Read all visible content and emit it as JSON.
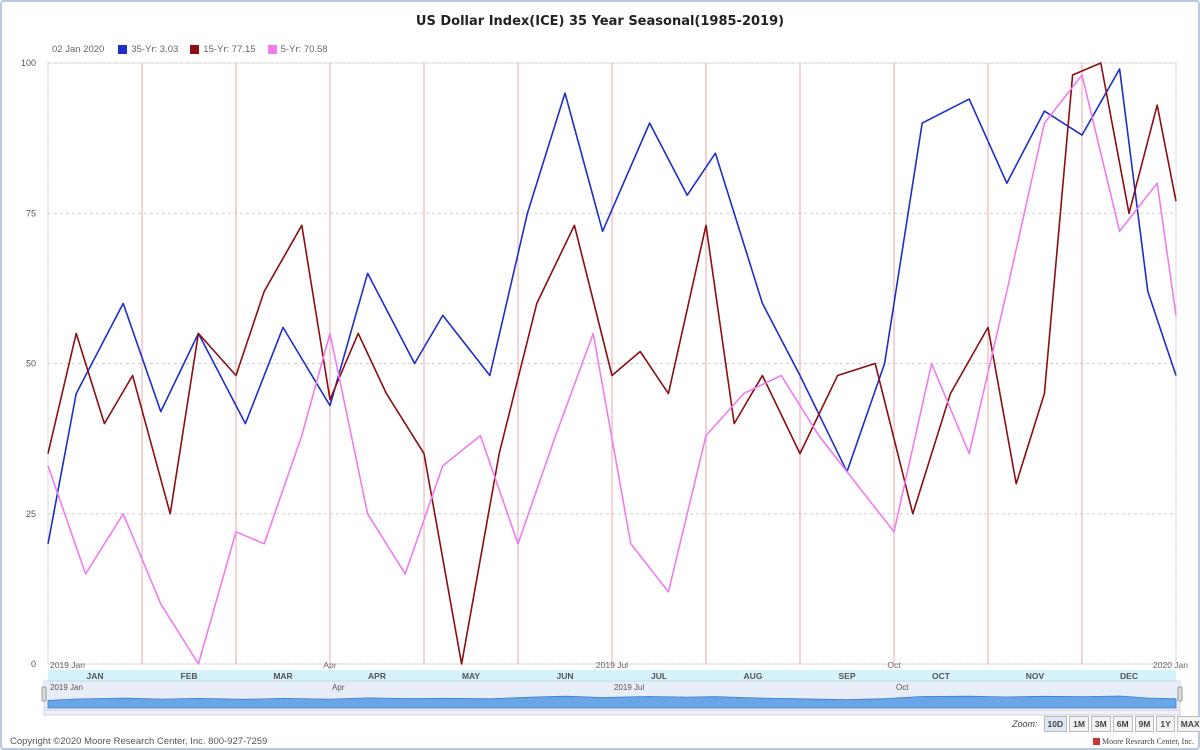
{
  "title": "US Dollar Index(ICE) 35 Year Seasonal(1985-2019)",
  "legend": {
    "date": "02 Jan 2020",
    "items": [
      {
        "label": "35-Yr: 3.03",
        "color": "#1c2fc8"
      },
      {
        "label": "15-Yr: 77.15",
        "color": "#8b0f12"
      },
      {
        "label": "5-Yr: 70.58",
        "color": "#f07cf0"
      }
    ]
  },
  "axes": {
    "y_ticks": [
      "0",
      "25",
      "50",
      "75",
      "100"
    ],
    "top_labels": [
      "2019 Jan",
      "Apr",
      "2019 Jul",
      "Oct",
      "2020 Jan"
    ],
    "months": [
      "JAN",
      "FEB",
      "MAR",
      "APR",
      "MAY",
      "JUN",
      "JUL",
      "AUG",
      "SEP",
      "OCT",
      "NOV",
      "DEC"
    ],
    "navigator_labels": [
      "2019 Jan",
      "Apr",
      "2019 Jul",
      "Oct"
    ]
  },
  "zoom": {
    "label": "Zoom:",
    "buttons": [
      "10D",
      "1M",
      "3M",
      "6M",
      "9M",
      "1Y",
      "MAX"
    ]
  },
  "copyright": "Copyright ©2020 Moore Research Center, Inc. 800-927-7259",
  "brand": "Moore Research Center, Inc.",
  "chart_data": {
    "type": "line",
    "title": "US Dollar Index(ICE) 35 Year Seasonal(1985-2019)",
    "ylim": [
      0,
      100
    ],
    "x_range": [
      "2019 Jan",
      "2020 Jan"
    ],
    "grid": true,
    "legend_position": "top-left",
    "series": [
      {
        "name": "35-Yr",
        "color": "#1c2fc8",
        "x": [
          0,
          0.3,
          0.8,
          1.2,
          1.6,
          2.1,
          2.5,
          3,
          3.4,
          3.9,
          4.2,
          4.7,
          5.1,
          5.5,
          5.9,
          6.4,
          6.8,
          7.1,
          7.6,
          8,
          8.5,
          8.9,
          9.3,
          9.8,
          10.2,
          10.6,
          11,
          11.4,
          11.7,
          12
        ],
        "values": [
          20,
          45,
          60,
          42,
          55,
          40,
          56,
          43,
          65,
          50,
          58,
          48,
          75,
          95,
          72,
          90,
          78,
          85,
          60,
          48,
          32,
          50,
          90,
          94,
          80,
          92,
          88,
          99,
          62,
          48
        ]
      },
      {
        "name": "15-Yr",
        "color": "#8b0f12",
        "x": [
          0,
          0.3,
          0.6,
          0.9,
          1.3,
          1.6,
          2,
          2.3,
          2.7,
          3,
          3.3,
          3.6,
          4,
          4.4,
          4.8,
          5.2,
          5.6,
          6,
          6.3,
          6.6,
          7,
          7.3,
          7.6,
          8,
          8.4,
          8.8,
          9.2,
          9.6,
          10,
          10.3,
          10.6,
          10.9,
          11.2,
          11.5,
          11.8,
          12
        ],
        "values": [
          35,
          55,
          40,
          48,
          25,
          55,
          48,
          62,
          73,
          44,
          55,
          45,
          35,
          0,
          35,
          60,
          73,
          48,
          52,
          45,
          73,
          40,
          48,
          35,
          48,
          50,
          25,
          45,
          56,
          30,
          45,
          98,
          100,
          75,
          93,
          77
        ]
      },
      {
        "name": "5-Yr",
        "color": "#f07cf0",
        "x": [
          0,
          0.4,
          0.8,
          1.2,
          1.6,
          2,
          2.3,
          2.7,
          3,
          3.4,
          3.8,
          4.2,
          4.6,
          5,
          5.4,
          5.8,
          6.2,
          6.6,
          7,
          7.4,
          7.8,
          8.2,
          8.6,
          9,
          9.4,
          9.8,
          10.2,
          10.6,
          11,
          11.4,
          11.8,
          12
        ],
        "values": [
          33,
          15,
          25,
          10,
          0,
          22,
          20,
          38,
          55,
          25,
          15,
          33,
          38,
          20,
          38,
          55,
          20,
          12,
          38,
          45,
          48,
          38,
          30,
          22,
          50,
          35,
          62,
          90,
          98,
          72,
          80,
          58
        ]
      }
    ]
  }
}
